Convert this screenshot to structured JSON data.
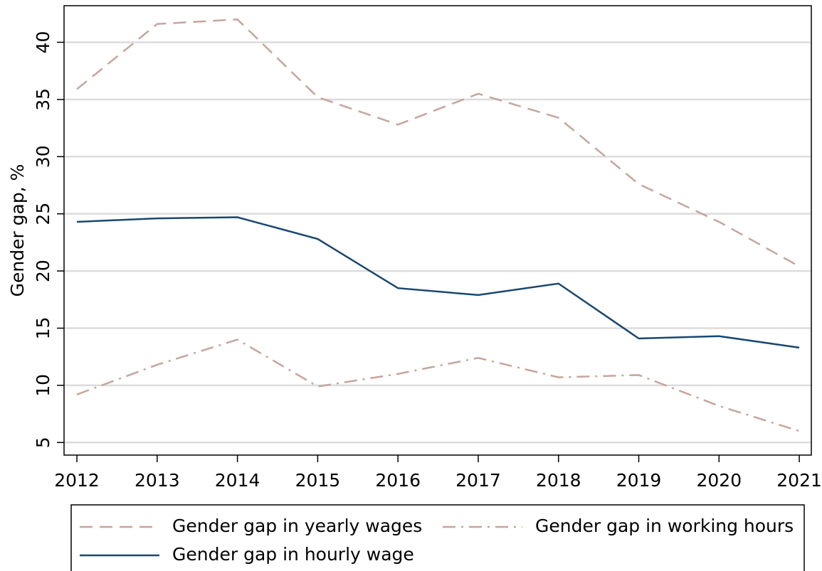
{
  "chart_data": {
    "type": "line",
    "y_label": "Gender gap, %",
    "x": [
      2012,
      2013,
      2014,
      2015,
      2016,
      2017,
      2018,
      2019,
      2020,
      2021
    ],
    "xlim": [
      2011.84,
      2021.15
    ],
    "xticks": [
      2012,
      2013,
      2014,
      2015,
      2016,
      2017,
      2018,
      2019,
      2020,
      2021
    ],
    "ylim": [
      3.9,
      43.2
    ],
    "yticks": [
      5,
      10,
      15,
      20,
      25,
      30,
      35,
      40
    ],
    "grid": true,
    "legend": "bottom",
    "series": [
      {
        "name": "Gender gap in yearly wages",
        "color": "#c4a69d",
        "style": "dashed",
        "values": [
          35.9,
          41.6,
          42.0,
          35.2,
          32.8,
          35.5,
          33.4,
          27.6,
          24.3,
          20.4
        ]
      },
      {
        "name": "Gender gap in working hours",
        "color": "#c4a69d",
        "style": "dashdot",
        "values": [
          9.2,
          11.8,
          14.0,
          9.9,
          11.0,
          12.4,
          10.7,
          10.9,
          8.2,
          6.0
        ]
      },
      {
        "name": "Gender gap in hourly wage",
        "color": "#1a476f",
        "style": "solid",
        "values": [
          24.3,
          24.6,
          24.7,
          22.8,
          18.5,
          17.9,
          18.9,
          14.1,
          14.3,
          13.3
        ]
      }
    ]
  }
}
